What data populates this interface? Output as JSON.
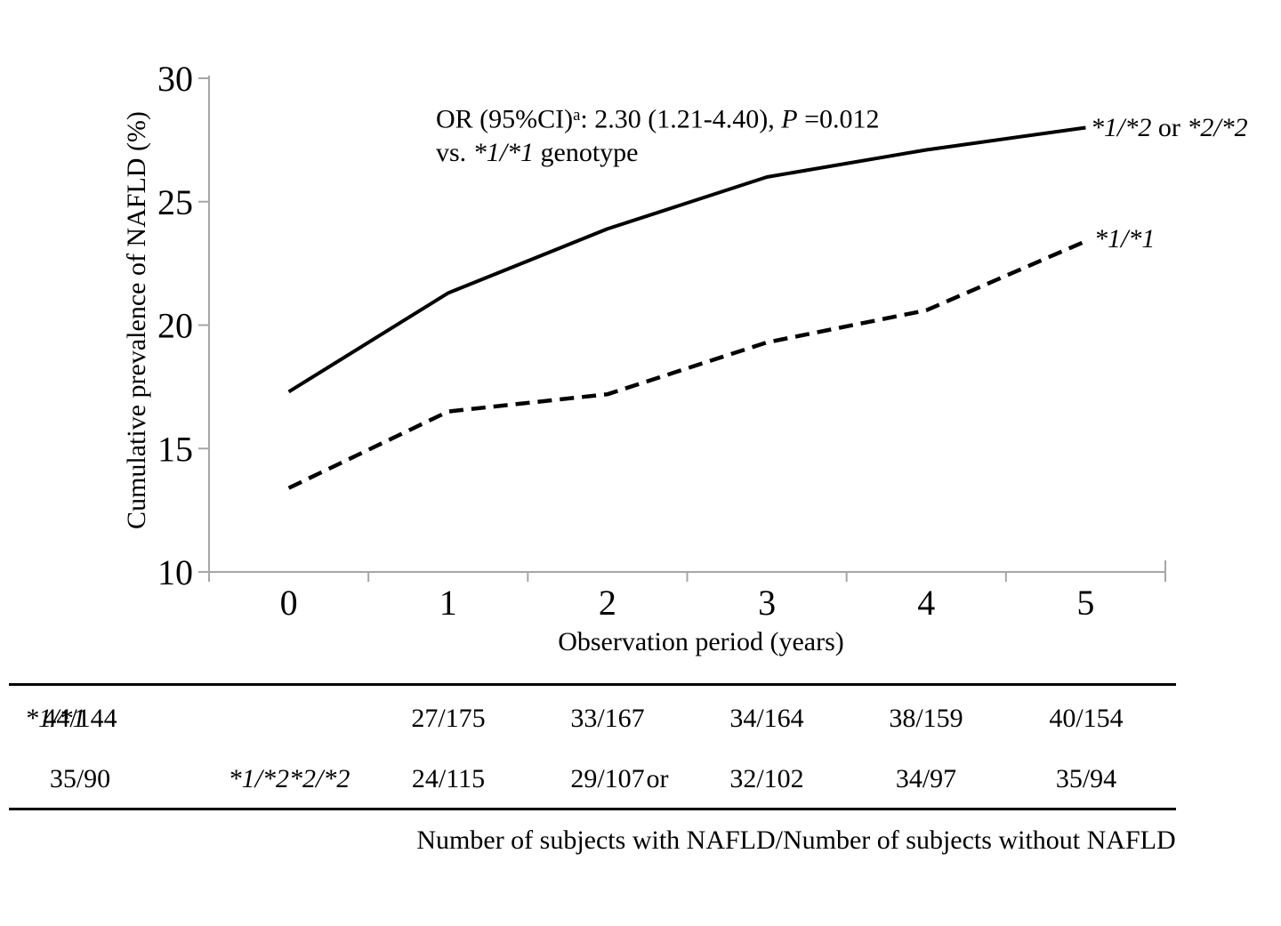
{
  "chart_data": {
    "type": "line",
    "x": [
      0,
      1,
      2,
      3,
      4,
      5
    ],
    "x_ticks": [
      "0",
      "1",
      "2",
      "3",
      "4",
      "5"
    ],
    "y_ticks": [
      10,
      15,
      20,
      25,
      30
    ],
    "ylim": [
      10,
      30
    ],
    "series": [
      {
        "name": "*1/*2 or *2/*2",
        "style": "solid",
        "values": [
          17.3,
          21.3,
          23.9,
          26.0,
          27.1,
          28.0
        ]
      },
      {
        "name": "*1/*1",
        "style": "dashed",
        "values": [
          13.4,
          16.5,
          17.2,
          19.3,
          20.6,
          23.4
        ]
      }
    ],
    "title": "",
    "xlabel": "Observation period (years)",
    "ylabel": "Cumulative prevalence of NAFLD (%)",
    "grid": false,
    "legend_position": "labels at right end of each line",
    "annotation_text": "OR (95%CI)a: 2.30 (1.21-4.40), P =0.012 vs. *1/*1 genotype"
  },
  "figure": {
    "annotation": {
      "line1_prefix": "OR (95%CI)",
      "line1_sup": "a",
      "line1_mid": ": 2.30 (1.21-4.40), ",
      "line1_p": "P",
      "line1_suffix": " =0.012",
      "line2_prefix": "vs. ",
      "line2_genotype": "*1/*1",
      "line2_suffix": " genotype"
    },
    "series_labels": {
      "solid_a": "*1/*2",
      "solid_or": " or ",
      "solid_b": "*2/*2",
      "dashed": "*1/*1"
    },
    "table": {
      "row1": {
        "label": "*1/*1",
        "values": [
          "27/175",
          "33/167",
          "34/164",
          "38/159",
          "40/154",
          "44/144"
        ]
      },
      "row2": {
        "label_a": "*1/*2",
        "label_or": " or ",
        "label_b": "*2/*2",
        "values": [
          "24/115",
          "29/107",
          "32/102",
          "34/97",
          "35/94",
          "35/90"
        ]
      },
      "footnote": "Number of subjects with NAFLD/Number of subjects without NAFLD"
    }
  }
}
